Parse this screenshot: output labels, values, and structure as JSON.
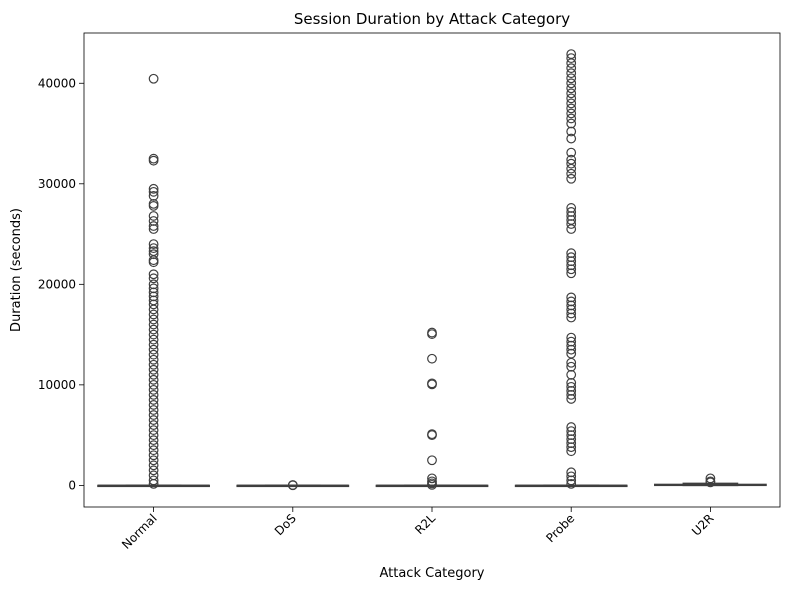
{
  "chart_data": {
    "type": "box",
    "title": "Session Duration by Attack Category",
    "xlabel": "Attack Category",
    "ylabel": "Duration (seconds)",
    "ylim": [
      -2150,
      45000
    ],
    "yticks": [
      0,
      10000,
      20000,
      30000,
      40000
    ],
    "ytick_labels": [
      "0",
      "10000",
      "20000",
      "30000",
      "40000"
    ],
    "x_tick_rotation_deg": 45,
    "grid": false,
    "legend": false,
    "colors": {
      "box_fill": "#ffffff",
      "box_edge": "#3f3f3f",
      "flier": "#3f3f3f"
    },
    "categories": [
      {
        "name": "Normal",
        "q1": 0,
        "median": 0,
        "q3": 0,
        "whisker_low": 0,
        "whisker_high": 0,
        "outliers": [
          40450,
          32500,
          32300,
          29500,
          29200,
          28800,
          28000,
          27800,
          26800,
          26300,
          25800,
          25500,
          24000,
          23600,
          23300,
          23000,
          22400,
          22200,
          21000,
          20600,
          20000,
          19600,
          19200,
          18800,
          18400,
          18000,
          17500,
          17000,
          16500,
          16000,
          15500,
          15000,
          14500,
          14000,
          13500,
          13000,
          12500,
          12000,
          11500,
          11000,
          10500,
          10000,
          9500,
          9000,
          8500,
          8000,
          7500,
          7000,
          6500,
          6000,
          5500,
          5000,
          4500,
          4000,
          3500,
          3000,
          2500,
          2000,
          1500,
          1000,
          500,
          150
        ]
      },
      {
        "name": "DoS",
        "q1": 0,
        "median": 0,
        "q3": 0,
        "whisker_low": 0,
        "whisker_high": 0,
        "outliers": [
          40,
          10
        ]
      },
      {
        "name": "R2L",
        "q1": 0,
        "median": 0,
        "q3": 0,
        "whisker_low": 0,
        "whisker_high": 0,
        "outliers": [
          15200,
          15050,
          12600,
          10150,
          10050,
          5100,
          5000,
          2500,
          700,
          400,
          200,
          50
        ]
      },
      {
        "name": "Probe",
        "q1": 0,
        "median": 0,
        "q3": 0,
        "whisker_low": 0,
        "whisker_high": 0,
        "outliers": [
          42900,
          42500,
          42000,
          41500,
          41000,
          40500,
          40000,
          39500,
          39000,
          38500,
          38000,
          37500,
          37000,
          36500,
          36000,
          35200,
          34500,
          33100,
          32400,
          32000,
          31500,
          31000,
          30500,
          27600,
          27200,
          26800,
          26400,
          26000,
          25500,
          23100,
          22700,
          22300,
          21900,
          21500,
          21100,
          18700,
          18300,
          17900,
          17500,
          17100,
          16700,
          14700,
          14300,
          13900,
          13500,
          13100,
          12200,
          11800,
          11000,
          10200,
          9800,
          9400,
          9000,
          8600,
          5800,
          5400,
          5000,
          4600,
          4200,
          3800,
          3400,
          1300,
          900,
          500,
          150
        ]
      },
      {
        "name": "U2R",
        "q1": 10,
        "median": 30,
        "q3": 100,
        "whisker_low": 0,
        "whisker_high": 200,
        "outliers": [
          700,
          400,
          300
        ]
      }
    ]
  }
}
